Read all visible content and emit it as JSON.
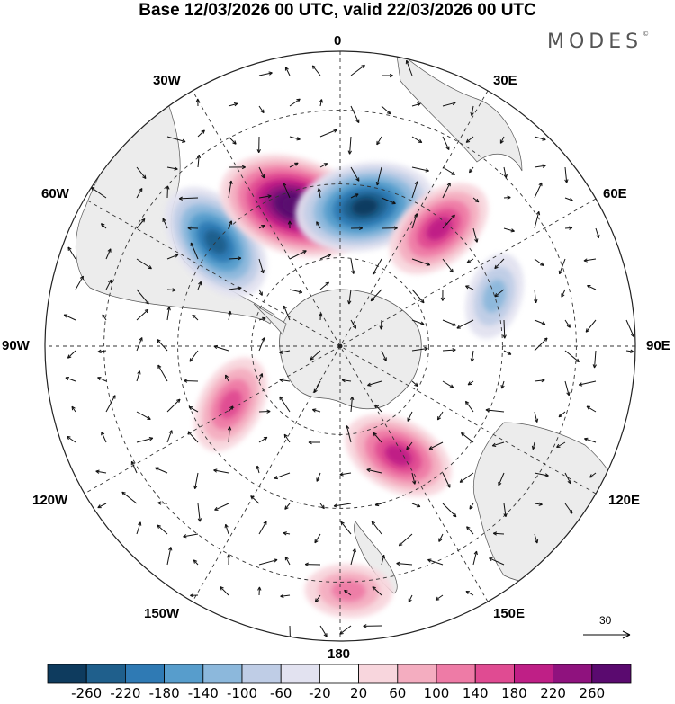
{
  "header": {
    "title": "Base 12/03/2026 00 UTC, valid 22/03/2026 00 UTC",
    "brand": "MODES",
    "brand_mark": "©"
  },
  "map": {
    "projection": "south polar stereographic",
    "longitude_labels": {
      "top": "0",
      "upper_left": "30W",
      "upper_right": "30E",
      "left_upper": "60W",
      "right_upper": "60E",
      "left": "90W",
      "right": "90E",
      "left_lower": "120W",
      "right_lower": "120E",
      "lower_left": "150W",
      "lower_right": "150E",
      "bottom": "180"
    },
    "reference_vector": {
      "label": "30"
    },
    "anomaly_centers": [
      {
        "sign": "negative",
        "peak": -180,
        "lon_hint": "50W"
      },
      {
        "sign": "positive",
        "peak": 260,
        "lon_hint": "20W"
      },
      {
        "sign": "negative",
        "peak": -220,
        "lon_hint": "10E"
      },
      {
        "sign": "positive",
        "peak": 140,
        "lon_hint": "40E"
      },
      {
        "sign": "positive",
        "peak": 140,
        "lon_hint": "150E"
      },
      {
        "sign": "positive",
        "peak": 100,
        "lon_hint": "120W"
      },
      {
        "sign": "negative",
        "peak": -60,
        "lon_hint": "70E"
      },
      {
        "sign": "positive",
        "peak": 60,
        "lon_hint": "180"
      }
    ]
  },
  "colorbar": {
    "labels": [
      "-260",
      "-220",
      "-180",
      "-140",
      "-100",
      "-60",
      "-20",
      "20",
      "60",
      "100",
      "140",
      "180",
      "220",
      "260"
    ],
    "colors": [
      "#0e3b5e",
      "#1f5f8c",
      "#2f7ab4",
      "#579dcc",
      "#8cb8dc",
      "#bfcde6",
      "#e2e2f0",
      "#ffffff",
      "#f8d6dd",
      "#f4adc0",
      "#ee7ba6",
      "#e04b92",
      "#bf1f86",
      "#8f127e",
      "#5a0a6f"
    ]
  }
}
